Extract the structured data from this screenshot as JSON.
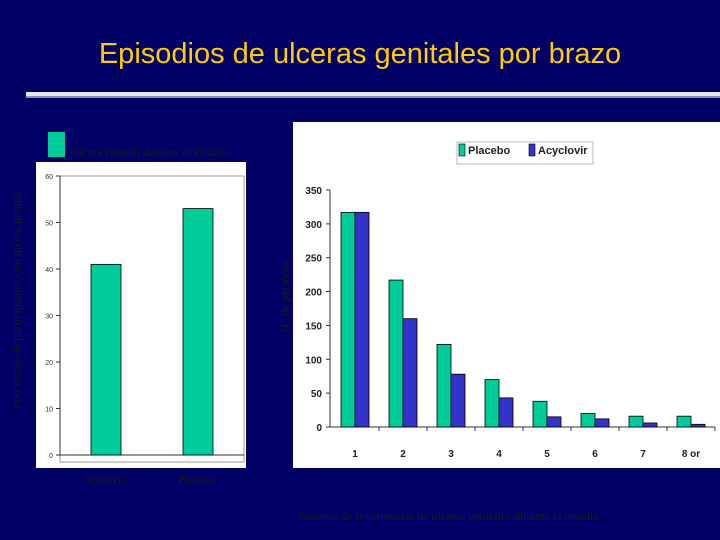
{
  "slide": {
    "title": "Episodios de ulceras genitales por brazo"
  },
  "colors": {
    "background": "#000066",
    "title": "#ffcc00",
    "placebo": "#00cc99",
    "acyclovir": "#3333cc"
  },
  "left_chart": {
    "legend_label": "Ulcera Genital durante el estudio",
    "ylabel": "Porcentaje de participantes con ulcera genital"
  },
  "right_chart": {
    "ylabel": "N° de personas",
    "xlabel": "Numero de recurrencias de ulceras genitales durante el estudio",
    "legend": [
      "Placebo",
      "Acyclovir"
    ]
  },
  "chart_data": [
    {
      "type": "bar",
      "categories": [
        "Aciclovir",
        "Placebo"
      ],
      "values": [
        41,
        53
      ],
      "ylabel": "Porcentaje de participantes con ulcera genital",
      "ylim": [
        0,
        60
      ],
      "yticks": [
        0,
        10,
        20,
        30,
        40,
        50,
        60
      ],
      "legend": [
        "Ulcera Genital durante el estudio"
      ],
      "grid": false
    },
    {
      "type": "bar",
      "categories": [
        "1",
        "2",
        "3",
        "4",
        "5",
        "6",
        "7",
        "8 or"
      ],
      "series": [
        {
          "name": "Placebo",
          "values": [
            317,
            217,
            122,
            70,
            38,
            20,
            16,
            16
          ]
        },
        {
          "name": "Acyclovir",
          "values": [
            317,
            160,
            78,
            43,
            15,
            12,
            6,
            4
          ]
        }
      ],
      "ylabel": "N° de personas",
      "xlabel": "Numero de recurrencias de ulceras genitales durante el estudio",
      "ylim": [
        0,
        350
      ],
      "yticks": [
        0,
        50,
        100,
        150,
        200,
        250,
        300,
        350
      ],
      "legend_position": "top",
      "grid": false
    }
  ]
}
